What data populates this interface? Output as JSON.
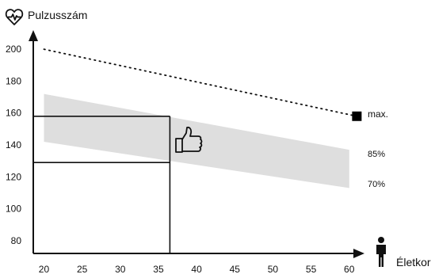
{
  "chart_data": {
    "type": "line",
    "ylabel": "Pulzusszám",
    "xlabel": "Életkor",
    "x_ticks": [
      20,
      25,
      30,
      35,
      40,
      45,
      50,
      55,
      60
    ],
    "y_ticks": [
      80,
      100,
      120,
      140,
      160,
      180,
      200
    ],
    "xlim": [
      18.6,
      62
    ],
    "ylim": [
      72,
      212
    ],
    "max_hr_line": {
      "x": [
        20,
        61
      ],
      "y": [
        200,
        158
      ]
    },
    "max_marker": {
      "x": 61,
      "y": 158,
      "label": "max."
    },
    "zone_band": {
      "x": [
        20,
        60
      ],
      "upper": [
        172,
        137
      ],
      "lower": [
        142,
        113
      ],
      "upper_label": "85%",
      "lower_label": "70%"
    },
    "example_age": 36.5,
    "example_range": [
      129,
      158
    ],
    "grid": false,
    "colors": {
      "band": "#dedede",
      "line": "#111111"
    },
    "icons": {
      "title_icon": "heart-pulse-icon",
      "age_icon": "person-icon",
      "band_icon": "thumbs-up-icon"
    }
  }
}
